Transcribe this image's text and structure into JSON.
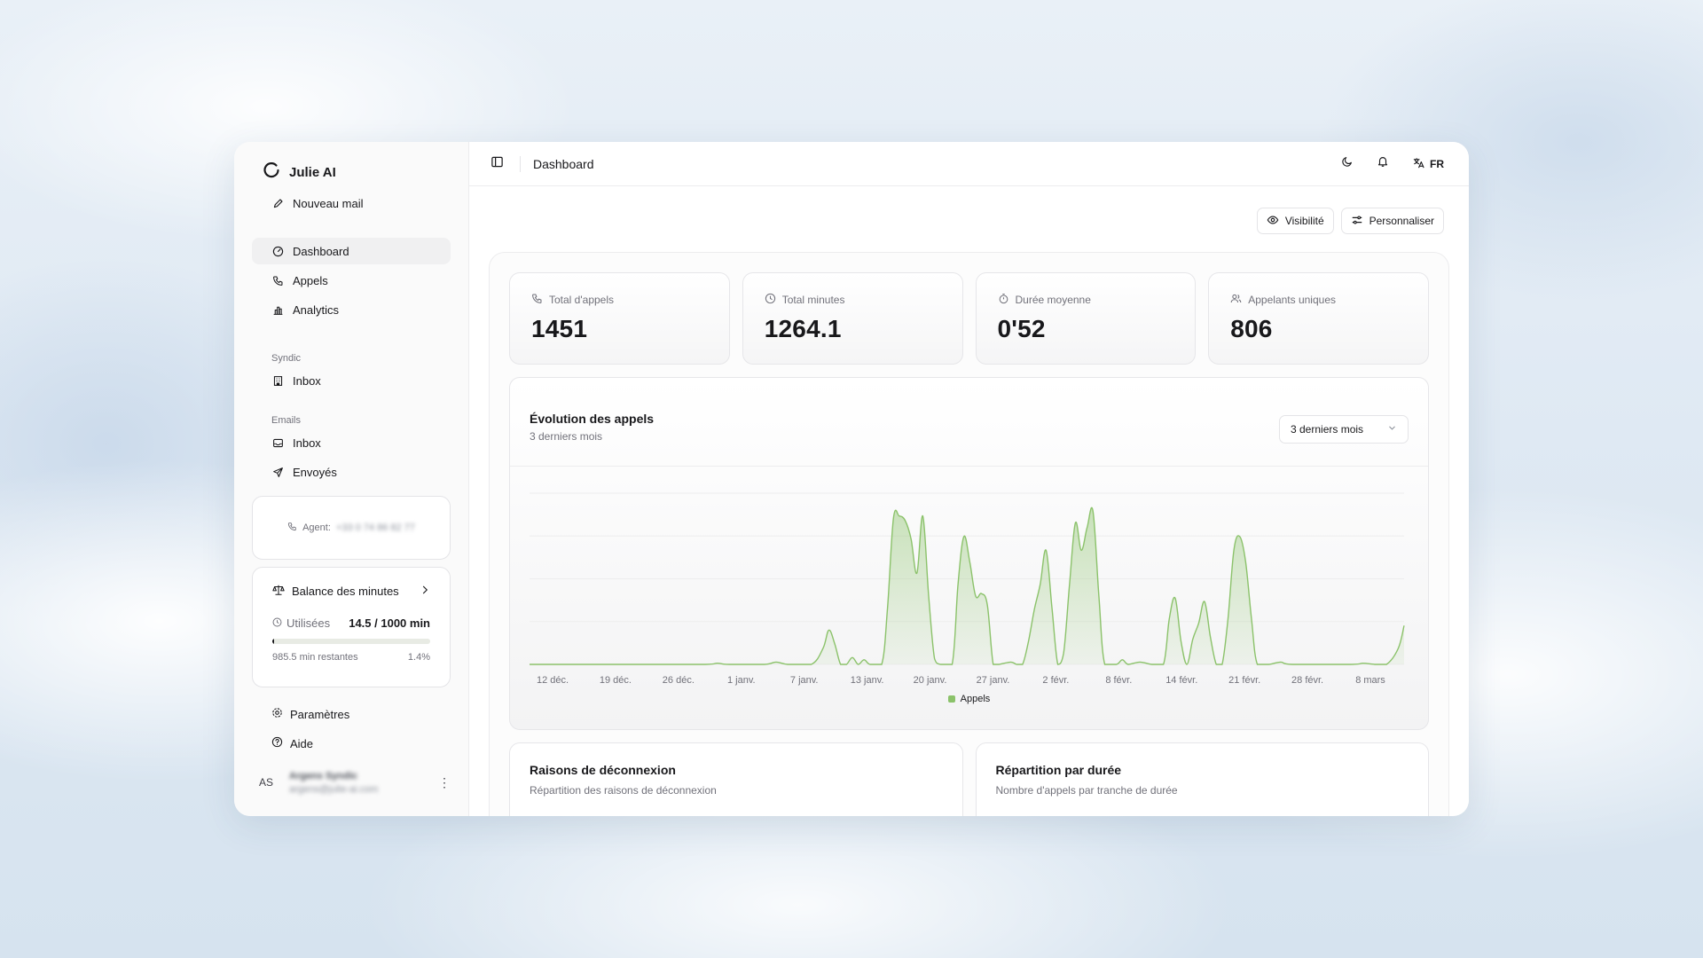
{
  "app": {
    "name": "Julie AI",
    "new_mail": "Nouveau mail"
  },
  "sidebar": {
    "main_items": [
      {
        "label": "Dashboard",
        "icon": "gauge-icon",
        "active": true
      },
      {
        "label": "Appels",
        "icon": "phone-icon"
      },
      {
        "label": "Analytics",
        "icon": "bar-chart-icon"
      }
    ],
    "sections": [
      {
        "title": "Syndic",
        "items": [
          {
            "label": "Inbox",
            "icon": "building-icon"
          }
        ]
      },
      {
        "title": "Emails",
        "items": [
          {
            "label": "Inbox",
            "icon": "inbox-icon"
          },
          {
            "label": "Envoyés",
            "icon": "send-icon"
          }
        ]
      }
    ],
    "agent": {
      "label": "Agent:",
      "number": "+33 0 74 86 82 77"
    },
    "balance": {
      "title": "Balance des minutes",
      "used_label": "Utilisées",
      "used_value": "14.5 / 1000 min",
      "remaining": "985.5 min restantes",
      "percent": "1.4%",
      "progress_fraction": 0.014
    },
    "footer_items": [
      {
        "label": "Paramètres",
        "icon": "settings-icon"
      },
      {
        "label": "Aide",
        "icon": "help-icon"
      }
    ],
    "user": {
      "initials": "AS",
      "name": "Argens Syndic",
      "email": "argens@julie-ai.com"
    }
  },
  "header": {
    "title": "Dashboard",
    "lang": "FR"
  },
  "actions": {
    "visibility": "Visibilité",
    "customize": "Personnaliser"
  },
  "kpis": [
    {
      "label": "Total d'appels",
      "value": "1451",
      "icon": "phone-icon"
    },
    {
      "label": "Total minutes",
      "value": "1264.1",
      "icon": "clock-icon"
    },
    {
      "label": "Durée moyenne",
      "value": "0'52",
      "icon": "timer-icon"
    },
    {
      "label": "Appelants uniques",
      "value": "806",
      "icon": "users-icon"
    }
  ],
  "chart_panel": {
    "title": "Évolution des appels",
    "subtitle": "3 derniers mois",
    "range": "3 derniers mois"
  },
  "chart_data": {
    "type": "area",
    "series": [
      {
        "name": "Appels",
        "color": "#8bc26a"
      }
    ],
    "x_ticks": [
      "12 déc.",
      "19 déc.",
      "26 déc.",
      "1 janv.",
      "7 janv.",
      "13 janv.",
      "20 janv.",
      "27 janv.",
      "2 févr.",
      "8 févr.",
      "14 févr.",
      "21 févr.",
      "28 févr.",
      "8 mars"
    ],
    "ylim": [
      0,
      150
    ],
    "grid": "horizontal",
    "legend": "bottom",
    "points": [
      [
        0,
        0
      ],
      [
        20,
        0
      ],
      [
        30,
        0
      ],
      [
        32,
        1
      ],
      [
        34,
        0
      ],
      [
        40,
        0
      ],
      [
        42,
        2
      ],
      [
        44,
        0
      ],
      [
        48,
        0
      ],
      [
        50,
        14
      ],
      [
        51,
        30
      ],
      [
        52,
        18
      ],
      [
        53,
        0
      ],
      [
        54,
        0
      ],
      [
        55,
        6
      ],
      [
        56,
        0
      ],
      [
        57,
        4
      ],
      [
        58,
        0
      ],
      [
        60,
        0
      ],
      [
        61,
        50
      ],
      [
        62,
        128
      ],
      [
        63,
        130
      ],
      [
        64,
        126
      ],
      [
        65,
        110
      ],
      [
        66,
        80
      ],
      [
        67,
        130
      ],
      [
        68,
        60
      ],
      [
        69,
        5
      ],
      [
        70,
        0
      ],
      [
        72,
        0
      ],
      [
        73,
        70
      ],
      [
        74,
        112
      ],
      [
        75,
        90
      ],
      [
        76,
        60
      ],
      [
        77,
        62
      ],
      [
        78,
        52
      ],
      [
        79,
        0
      ],
      [
        80,
        0
      ],
      [
        82,
        2
      ],
      [
        83,
        0
      ],
      [
        84,
        0
      ],
      [
        85,
        20
      ],
      [
        86,
        48
      ],
      [
        87,
        70
      ],
      [
        88,
        100
      ],
      [
        89,
        50
      ],
      [
        90,
        0
      ],
      [
        91,
        10
      ],
      [
        92,
        70
      ],
      [
        93,
        124
      ],
      [
        94,
        100
      ],
      [
        95,
        120
      ],
      [
        96,
        134
      ],
      [
        97,
        60
      ],
      [
        98,
        0
      ],
      [
        100,
        0
      ],
      [
        101,
        4
      ],
      [
        102,
        0
      ],
      [
        104,
        2
      ],
      [
        106,
        0
      ],
      [
        108,
        0
      ],
      [
        109,
        40
      ],
      [
        110,
        58
      ],
      [
        111,
        20
      ],
      [
        112,
        0
      ],
      [
        113,
        22
      ],
      [
        114,
        36
      ],
      [
        115,
        55
      ],
      [
        116,
        24
      ],
      [
        117,
        0
      ],
      [
        118,
        0
      ],
      [
        119,
        40
      ],
      [
        120,
        100
      ],
      [
        121,
        112
      ],
      [
        122,
        90
      ],
      [
        123,
        40
      ],
      [
        124,
        0
      ],
      [
        126,
        0
      ],
      [
        128,
        2
      ],
      [
        130,
        0
      ],
      [
        140,
        0
      ],
      [
        142,
        1
      ],
      [
        144,
        0
      ],
      [
        146,
        0
      ],
      [
        148,
        14
      ],
      [
        149,
        34
      ]
    ]
  },
  "bottom_cards": [
    {
      "title": "Raisons de déconnexion",
      "subtitle": "Répartition des raisons de déconnexion"
    },
    {
      "title": "Répartition par durée",
      "subtitle": "Nombre d'appels par tranche de durée"
    }
  ]
}
